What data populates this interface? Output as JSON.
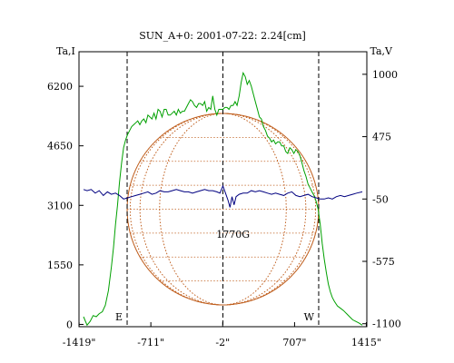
{
  "chart_data": {
    "type": "line",
    "title": "SUN_A+0: 2001-07-22: 2.24[cm]",
    "left_axis": {
      "label": "Ta,I",
      "ticks": [
        0,
        1550,
        3100,
        4650,
        6200
      ],
      "tick_labels": [
        "0",
        "1550",
        "3100",
        "4650",
        "6200"
      ],
      "range": [
        -60,
        7100
      ]
    },
    "right_axis": {
      "label": "Ta,V",
      "ticks": [
        -1100,
        -575,
        -50,
        475,
        1000
      ],
      "tick_labels": [
        "-1100",
        "-575",
        "-50",
        "475",
        "1000"
      ],
      "range": [
        -1125,
        1190
      ]
    },
    "x_axis": {
      "ticks": [
        -1419,
        -711,
        -2,
        707,
        1415
      ],
      "tick_labels": [
        "-1419\"",
        "-711\"",
        "-2\"",
        "707\"",
        "1415\""
      ],
      "range": [
        -1420,
        1420
      ]
    },
    "markers": [
      {
        "label": "E",
        "x": -945
      },
      {
        "x": 0
      },
      {
        "label": "W",
        "x": 945
      }
    ],
    "disk": {
      "center": [
        0,
        3000
      ],
      "radius_x": 945
    },
    "annotations": [
      {
        "text": "1770G",
        "x": 100,
        "y": 2250
      }
    ],
    "colors": {
      "intensity": "#00a000",
      "polarization": "#000080",
      "disk": "#c06020",
      "marker": "#000000"
    },
    "series": [
      {
        "axis": "left",
        "x": [
          -1375,
          -1340,
          -1310,
          -1280,
          -1250,
          -1220,
          -1190,
          -1160,
          -1130,
          -1100,
          -1080,
          -1060,
          -1040,
          -1020,
          -1000,
          -980,
          -960,
          -940,
          -920,
          -900,
          -880,
          -860,
          -840,
          -820,
          -800,
          -780,
          -760,
          -740,
          -720,
          -700,
          -680,
          -660,
          -640,
          -620,
          -600,
          -580,
          -560,
          -540,
          -520,
          -500,
          -480,
          -460,
          -440,
          -420,
          -400,
          -380,
          -360,
          -340,
          -320,
          -300,
          -280,
          -260,
          -240,
          -220,
          -200,
          -180,
          -160,
          -140,
          -120,
          -100,
          -80,
          -60,
          -40,
          -20,
          0,
          20,
          40,
          60,
          80,
          100,
          120,
          140,
          160,
          180,
          200,
          220,
          240,
          260,
          280,
          300,
          320,
          340,
          360,
          380,
          400,
          420,
          440,
          460,
          480,
          500,
          520,
          540,
          560,
          580,
          600,
          620,
          640,
          660,
          680,
          700,
          720,
          740,
          760,
          780,
          800,
          820,
          840,
          860,
          880,
          900,
          920,
          940,
          960,
          980,
          1000,
          1020,
          1040,
          1060,
          1080,
          1100,
          1130,
          1160,
          1190,
          1220,
          1250,
          1280,
          1310,
          1340,
          1375
        ],
        "y": [
          200,
          -20,
          80,
          230,
          200,
          280,
          330,
          500,
          880,
          1500,
          2000,
          2600,
          3100,
          3700,
          4200,
          4600,
          4800,
          4950,
          5050,
          5150,
          5200,
          5250,
          5300,
          5200,
          5300,
          5350,
          5250,
          5450,
          5400,
          5350,
          5500,
          5350,
          5600,
          5550,
          5400,
          5600,
          5600,
          5450,
          5450,
          5500,
          5550,
          5450,
          5600,
          5500,
          5550,
          5550,
          5650,
          5750,
          5850,
          5800,
          5700,
          5650,
          5750,
          5750,
          5700,
          5800,
          5550,
          5650,
          5600,
          5950,
          5600,
          5450,
          5600,
          5600,
          5600,
          5650,
          5650,
          5600,
          5700,
          5700,
          5800,
          5700,
          5950,
          6300,
          6550,
          6450,
          6250,
          6350,
          6200,
          6000,
          5800,
          5600,
          5400,
          5350,
          5150,
          5050,
          4900,
          4850,
          4750,
          4800,
          4700,
          4750,
          4750,
          4650,
          4650,
          4500,
          4450,
          4600,
          4550,
          4450,
          4550,
          4500,
          4400,
          4200,
          4000,
          3850,
          3650,
          3550,
          3450,
          3350,
          3200,
          3000,
          2600,
          2100,
          1700,
          1350,
          1050,
          850,
          700,
          600,
          480,
          420,
          360,
          280,
          200,
          120,
          80,
          40,
          -20
        ],
        "name": ""
      },
      {
        "axis": "right",
        "x": [
          -1375,
          -1340,
          -1300,
          -1260,
          -1220,
          -1180,
          -1140,
          -1100,
          -1060,
          -1020,
          -980,
          -940,
          -900,
          -860,
          -820,
          -780,
          -740,
          -700,
          -660,
          -620,
          -580,
          -540,
          -500,
          -460,
          -420,
          -380,
          -340,
          -300,
          -260,
          -220,
          -180,
          -140,
          -100,
          -60,
          -30,
          0,
          30,
          50,
          70,
          90,
          110,
          130,
          160,
          200,
          240,
          280,
          320,
          360,
          400,
          440,
          480,
          520,
          560,
          600,
          640,
          680,
          720,
          760,
          800,
          840,
          880,
          920,
          960,
          1000,
          1040,
          1080,
          1120,
          1160,
          1200,
          1240,
          1280,
          1320,
          1375
        ],
        "y": [
          30,
          20,
          30,
          0,
          20,
          -20,
          10,
          -10,
          0,
          -20,
          -50,
          -40,
          -30,
          -20,
          -10,
          0,
          10,
          -10,
          0,
          20,
          10,
          10,
          20,
          30,
          20,
          10,
          10,
          0,
          10,
          20,
          30,
          20,
          20,
          10,
          0,
          60,
          -10,
          -60,
          -120,
          -30,
          -100,
          -30,
          -10,
          0,
          0,
          20,
          10,
          20,
          10,
          0,
          -10,
          0,
          -10,
          -20,
          0,
          10,
          -20,
          -30,
          -20,
          -10,
          -30,
          -40,
          -50,
          -50,
          -40,
          -50,
          -30,
          -20,
          -30,
          -20,
          -10,
          0,
          10
        ],
        "name": ""
      }
    ]
  }
}
